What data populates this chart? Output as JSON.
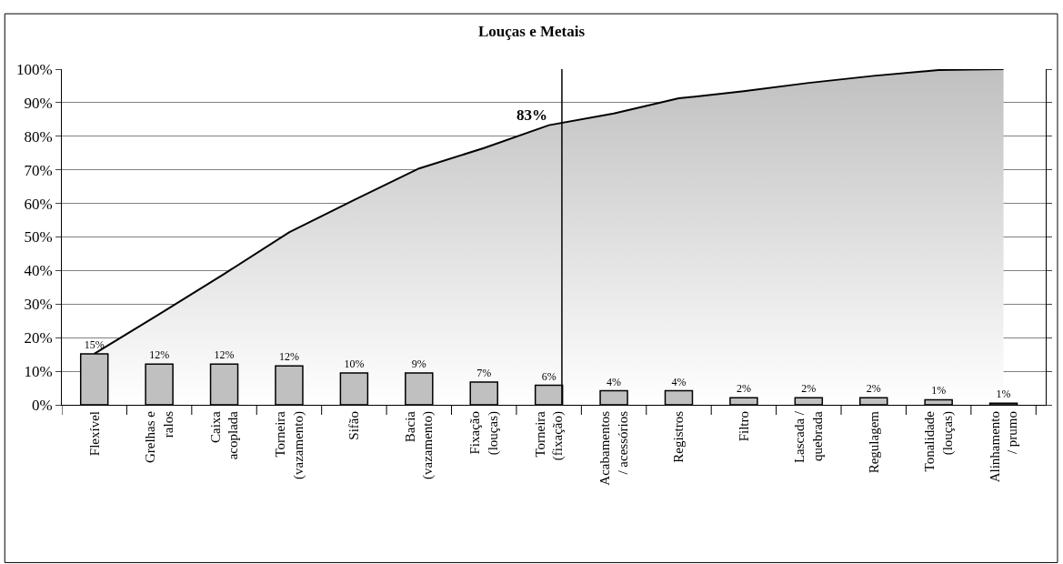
{
  "chart_data": {
    "type": "bar",
    "title": "Louças e Metais",
    "categories": [
      "Flexível",
      "Grelhas e\nralos",
      "Caixa\nacoplada",
      "Torneira\n(vazamento)",
      "Sifão",
      "Bacia\n(vazamento)",
      "Fixação\n(louças)",
      "Torneira\n(fixação)",
      "Acabamentos\n/ acessórios",
      "Registros",
      "Filtro",
      "Lascada /\nquebrada",
      "Regulagem",
      "Tonalidade\n(louças)",
      "Alinhamento\n/ prumo"
    ],
    "series": [
      {
        "type": "area",
        "color": "#c0c0c0",
        "values": [
          15.2,
          27,
          39,
          51.4,
          61,
          70.4,
          76.5,
          83.3,
          86.8,
          91.3,
          93.4,
          95.9,
          98,
          99.7,
          100
        ]
      },
      {
        "color": "#c0c0c0",
        "values": [
          15.2,
          12.1,
          12.1,
          11.6,
          9.5,
          9.5,
          6.8,
          5.8,
          4.2,
          4.2,
          2.1,
          2.1,
          2.1,
          1.5,
          0.5
        ],
        "value_labels": [
          "15%",
          "12%",
          "12%",
          "12%",
          "10%",
          "9%",
          "7%",
          "6%",
          "4%",
          "4%",
          "2%",
          "2%",
          "2%",
          "1%",
          "1%"
        ]
      }
    ],
    "ylim": [
      0,
      100
    ],
    "yticks": [
      {
        "value": 0,
        "label": "0%"
      },
      {
        "value": 10,
        "label": "10%"
      },
      {
        "value": 20,
        "label": "20%"
      },
      {
        "value": 30,
        "label": "30%"
      },
      {
        "value": 40,
        "label": "40%"
      },
      {
        "value": 50,
        "label": "50%"
      },
      {
        "value": 60,
        "label": "60%"
      },
      {
        "value": 70,
        "label": "70%"
      },
      {
        "value": 80,
        "label": "80%"
      },
      {
        "value": 90,
        "label": "90%"
      },
      {
        "value": 100,
        "label": "100%"
      }
    ],
    "grid": "y",
    "ref_lines": [
      {
        "axis": "x",
        "value": "Torneira\n(fixação)",
        "color": "#000000"
      }
    ],
    "annotations": [
      {
        "text": "83%",
        "x": "Torneira\n(fixação)",
        "y": 83.3
      }
    ]
  }
}
